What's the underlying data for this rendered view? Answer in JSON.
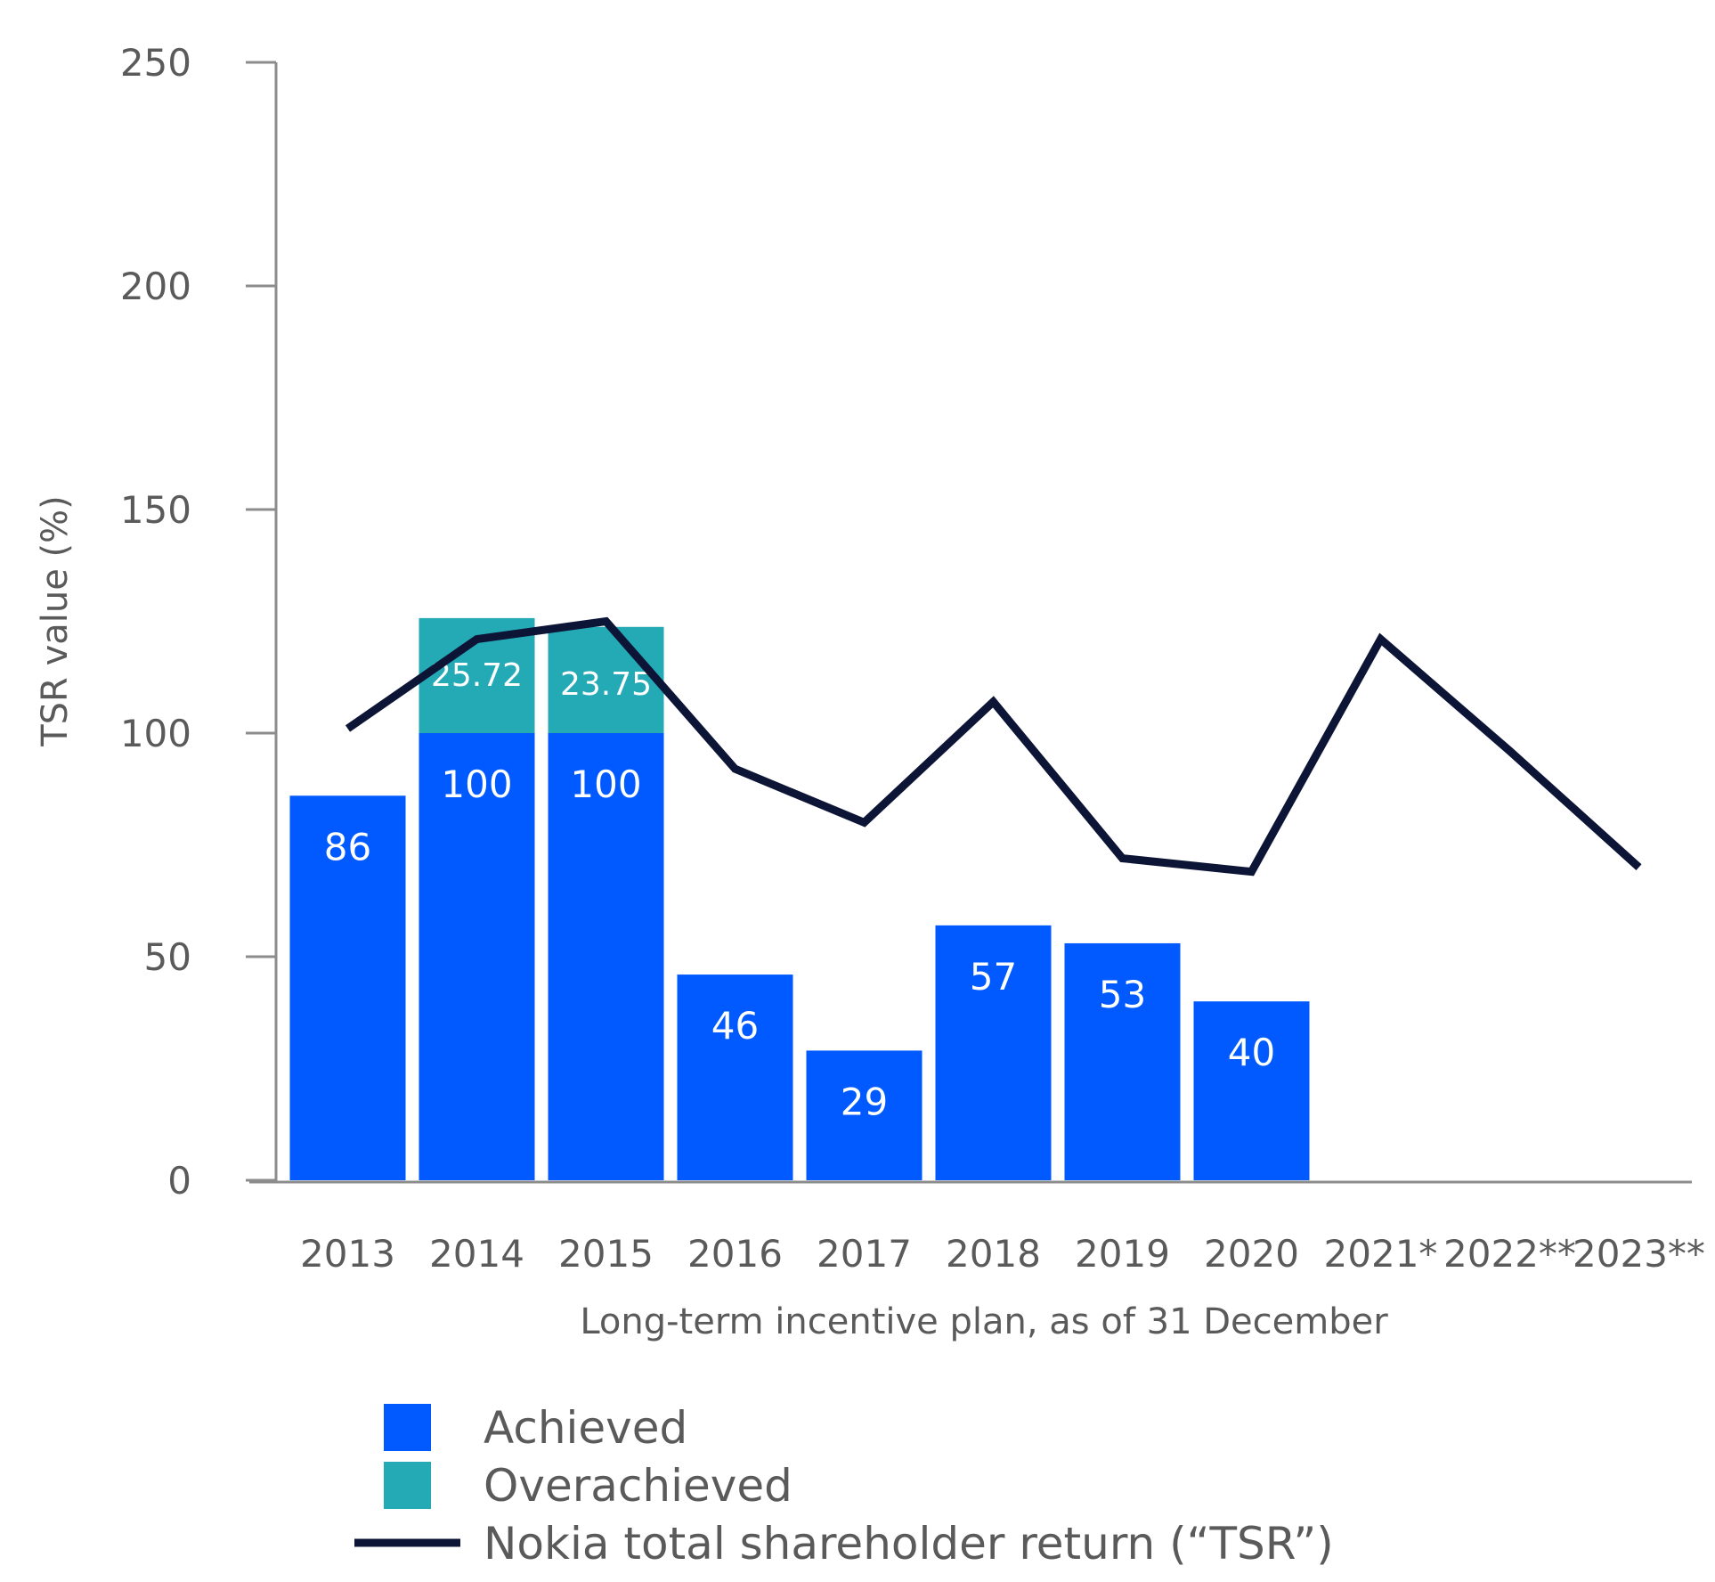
{
  "chart_data": {
    "type": "bar",
    "title": "",
    "xlabel": "Long-term incentive plan, as of 31 December",
    "ylabel": "TSR value (%)",
    "ylim": [
      0,
      250
    ],
    "yticks": [
      0,
      50,
      100,
      150,
      200,
      250
    ],
    "grid": false,
    "categories": [
      "2013",
      "2014",
      "2015",
      "2016",
      "2017",
      "2018",
      "2019",
      "2020",
      "2021*",
      "2022**",
      "2023**"
    ],
    "series": [
      {
        "name": "Achieved",
        "kind": "bar",
        "color": "#005aff",
        "values": [
          86,
          100,
          100,
          46,
          29,
          57,
          53,
          40,
          null,
          null,
          null
        ],
        "labels": [
          "86",
          "100",
          "100",
          "46",
          "29",
          "57",
          "53",
          "40",
          null,
          null,
          null
        ]
      },
      {
        "name": "Overachieved",
        "kind": "stacked-bar",
        "color": "#24aab5",
        "values": [
          null,
          25.72,
          23.75,
          null,
          null,
          null,
          null,
          null,
          null,
          null,
          null
        ],
        "labels": [
          null,
          "25.72",
          "23.75",
          null,
          null,
          null,
          null,
          null,
          null,
          null,
          null
        ]
      },
      {
        "name": "Nokia total shareholder return (“TSR”)",
        "kind": "line",
        "color": "#0d1537",
        "values": [
          101,
          121,
          125,
          92,
          80,
          107,
          72,
          69,
          121,
          96,
          70
        ]
      }
    ],
    "legend": {
      "position": "bottom-left",
      "entries": [
        {
          "label": "Achieved",
          "swatch": "square",
          "color": "#005aff"
        },
        {
          "label": "Overachieved",
          "swatch": "square",
          "color": "#24aab5"
        },
        {
          "label": "Nokia total shareholder return (“TSR”)",
          "swatch": "line",
          "color": "#0d1537"
        }
      ]
    },
    "axis_color": "#8c8c8c"
  }
}
